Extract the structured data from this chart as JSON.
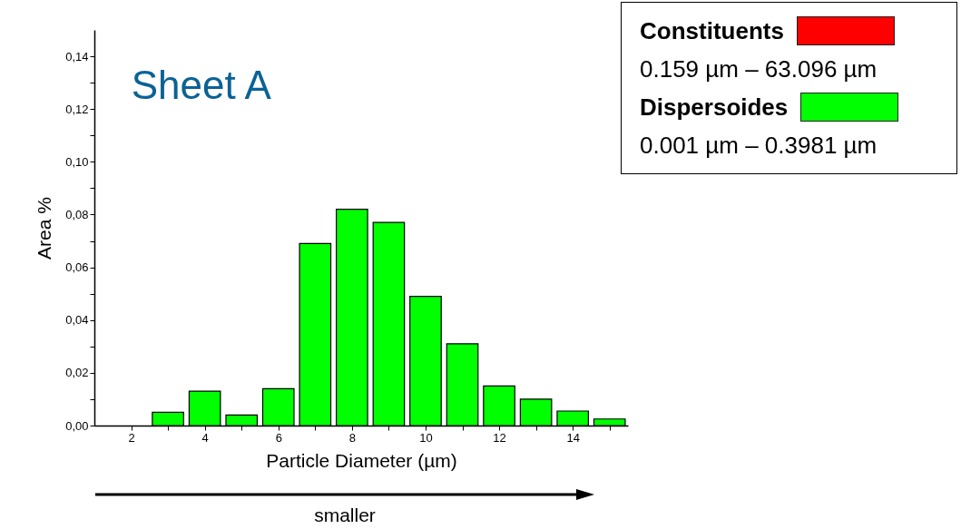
{
  "chart_data": {
    "type": "bar",
    "title": "Sheet A",
    "xlabel": "Particle Diameter (µm)",
    "ylabel": "Area %",
    "x": [
      3,
      4,
      5,
      6,
      7,
      8,
      9,
      10,
      11,
      12,
      13,
      14,
      15
    ],
    "series": [
      {
        "name": "Constituents",
        "color": "#ff0000",
        "values": [
          null,
          null,
          null,
          null,
          null,
          null,
          null,
          null,
          null,
          null,
          null,
          null,
          null
        ]
      },
      {
        "name": "Dispersoides",
        "color": "#00ff00",
        "values": [
          0.005,
          0.013,
          0.004,
          0.014,
          0.069,
          0.082,
          0.077,
          0.049,
          0.031,
          0.015,
          0.01,
          0.0055,
          0.0025
        ]
      }
    ],
    "xlim": [
      1,
      15.5
    ],
    "xticks": [
      2,
      {
        "value": 3,
        "label": null
      },
      4,
      {
        "value": 5,
        "label": null
      },
      6,
      {
        "value": 7,
        "label": null
      },
      8,
      {
        "value": 9,
        "label": null
      },
      10,
      {
        "value": 11,
        "label": null
      },
      12,
      {
        "value": 13,
        "label": null
      },
      14,
      {
        "value": 15,
        "label": null
      }
    ],
    "ylim": [
      0,
      0.15
    ],
    "yticks": [
      {
        "value": 0,
        "label": "0,00"
      },
      {
        "value": 0.01,
        "label": null
      },
      {
        "value": 0.02,
        "label": "0,02"
      },
      {
        "value": 0.03,
        "label": null
      },
      {
        "value": 0.04,
        "label": "0,04"
      },
      {
        "value": 0.05,
        "label": null
      },
      {
        "value": 0.06,
        "label": "0,06"
      },
      {
        "value": 0.07,
        "label": null
      },
      {
        "value": 0.08,
        "label": "0,08"
      },
      {
        "value": 0.09,
        "label": null
      },
      {
        "value": 0.1,
        "label": "0,10"
      },
      {
        "value": 0.11,
        "label": null
      },
      {
        "value": 0.12,
        "label": "0,12"
      },
      {
        "value": 0.13,
        "label": null
      },
      {
        "value": 0.14,
        "label": "0,14"
      }
    ],
    "grid": false,
    "legend": "top right",
    "annotations": [
      "0.159 µm – 63.096 µm",
      "0.001 µm – 0.3981 µm",
      "smaller"
    ]
  }
}
